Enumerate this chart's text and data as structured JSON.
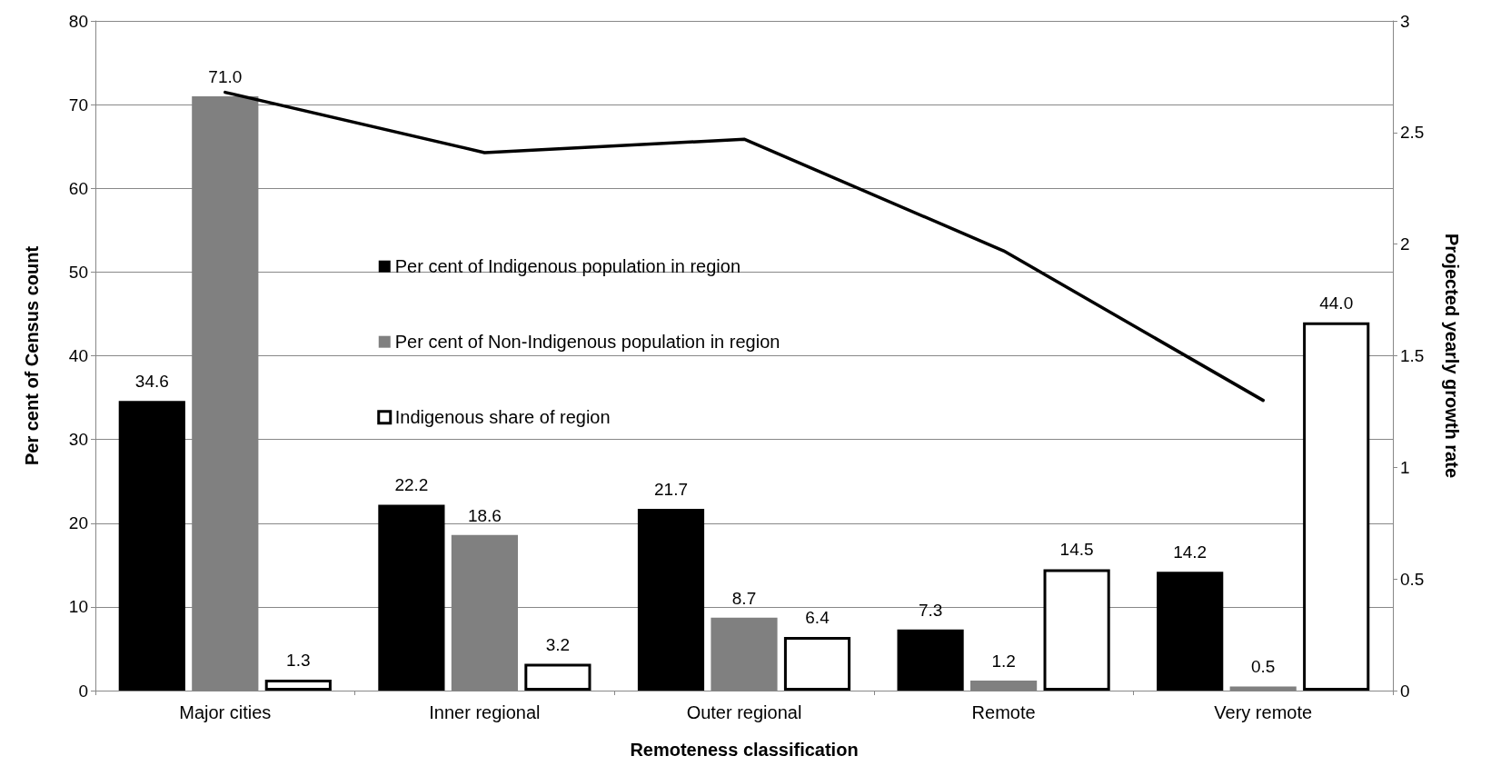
{
  "chart_data": {
    "type": "bar",
    "xlabel": "Remoteness classification",
    "ylabel": "Per cent of Census count",
    "y2label": "Projected yearly growth rate",
    "categories": [
      "Major cities",
      "Inner regional",
      "Outer regional",
      "Remote",
      "Very remote"
    ],
    "series": [
      {
        "name": "Per cent of Indigenous population in region",
        "color": "#000000",
        "values": [
          34.6,
          22.2,
          21.7,
          7.3,
          14.2
        ],
        "value_labels": [
          "34.6",
          "22.2",
          "21.7",
          "7.3",
          "14.2"
        ]
      },
      {
        "name": "Per cent of Non-Indigenous population in region",
        "color": "#808080",
        "values": [
          71.0,
          18.6,
          8.7,
          1.2,
          0.5
        ],
        "value_labels": [
          "71.0",
          "18.6",
          "8.7",
          "1.2",
          "0.5"
        ]
      },
      {
        "name": "Indigenous share of region",
        "color": "#ffffff",
        "values": [
          1.3,
          3.2,
          6.4,
          14.5,
          44.0
        ],
        "value_labels": [
          "1.3",
          "3.2",
          "6.4",
          "14.5",
          "44.0"
        ]
      },
      {
        "type": "line",
        "axis": "y2",
        "color": "#000000",
        "values": [
          2.68,
          2.41,
          2.47,
          1.97,
          1.3
        ],
        "marker": "none",
        "line_style": "solid"
      }
    ],
    "ylim": [
      0,
      80
    ],
    "yticks": [
      0,
      10,
      20,
      30,
      40,
      50,
      60,
      70,
      80
    ],
    "y2lim": [
      0,
      3
    ],
    "y2ticks": [
      0,
      0.5,
      1,
      1.5,
      2,
      2.5,
      3
    ],
    "grid": "y",
    "legend": "center"
  }
}
